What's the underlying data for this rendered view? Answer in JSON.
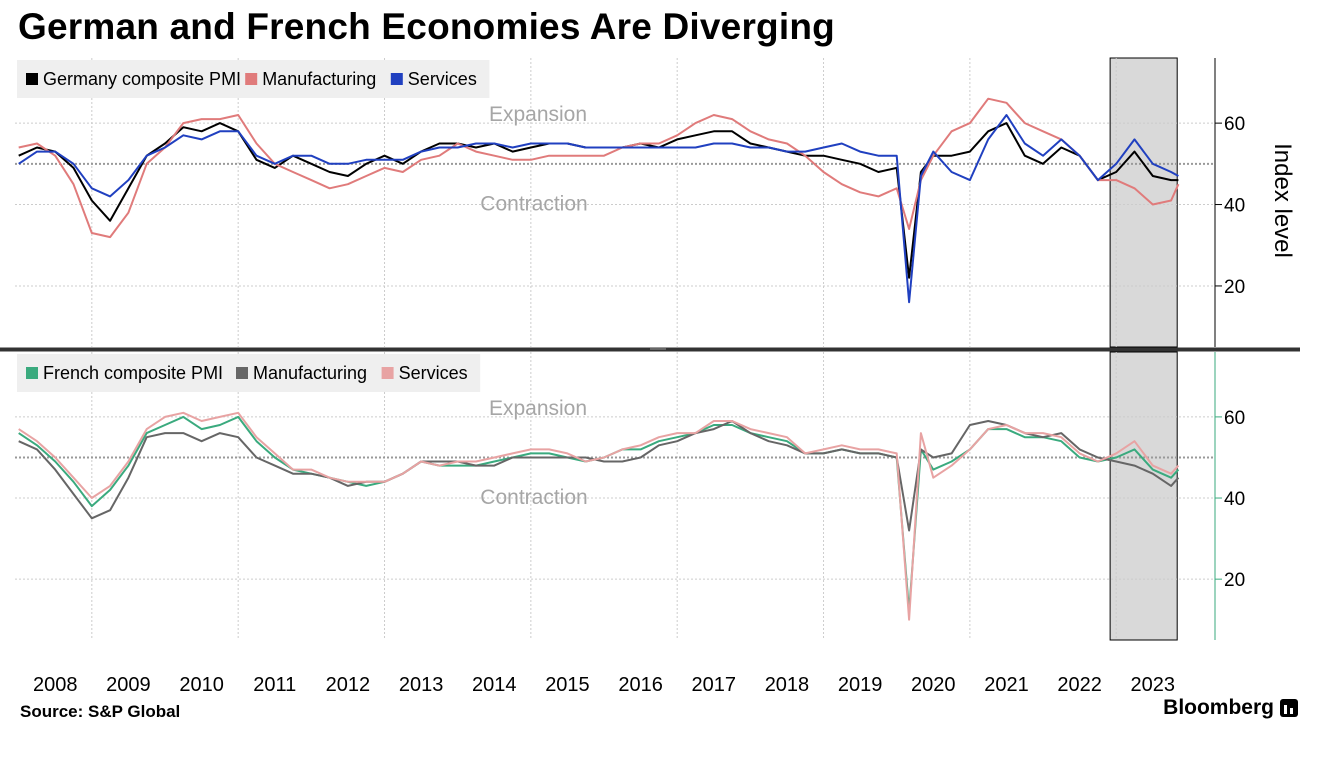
{
  "title": "German and French Economies Are Diverging",
  "source": "Source: S&P Global",
  "brand": "Bloomberg",
  "chart_data": [
    {
      "type": "line",
      "panel": "top",
      "ylabel": "Index level",
      "ylim": [
        5,
        76
      ],
      "yticks": [
        20,
        40,
        60
      ],
      "reference_line": 50,
      "annotations": [
        "Expansion",
        "Contraction"
      ],
      "shaded_period": [
        "2022-12",
        "2023-11"
      ],
      "series": [
        {
          "name": "Germany composite PMI",
          "color": "#000000",
          "x": [
            2008.0,
            2008.25,
            2008.5,
            2008.75,
            2009.0,
            2009.25,
            2009.5,
            2009.75,
            2010.0,
            2010.25,
            2010.5,
            2010.75,
            2011.0,
            2011.25,
            2011.5,
            2011.75,
            2012.0,
            2012.25,
            2012.5,
            2012.75,
            2013.0,
            2013.25,
            2013.5,
            2013.75,
            2014.0,
            2014.25,
            2014.5,
            2014.75,
            2015.0,
            2015.25,
            2015.5,
            2015.75,
            2016.0,
            2016.25,
            2016.5,
            2016.75,
            2017.0,
            2017.25,
            2017.5,
            2017.75,
            2018.0,
            2018.25,
            2018.5,
            2018.75,
            2019.0,
            2019.25,
            2019.5,
            2019.75,
            2020.0,
            2020.17,
            2020.33,
            2020.5,
            2020.75,
            2021.0,
            2021.25,
            2021.5,
            2021.75,
            2022.0,
            2022.25,
            2022.5,
            2022.75,
            2023.0,
            2023.25,
            2023.5,
            2023.75,
            2023.85
          ],
          "values": [
            52,
            54,
            53,
            49,
            41,
            36,
            44,
            52,
            55,
            59,
            58,
            60,
            58,
            51,
            49,
            52,
            50,
            48,
            47,
            50,
            52,
            50,
            53,
            55,
            55,
            54,
            55,
            53,
            54,
            55,
            55,
            54,
            54,
            54,
            55,
            54,
            56,
            57,
            58,
            58,
            55,
            54,
            53,
            52,
            52,
            51,
            50,
            48,
            49,
            22,
            48,
            52,
            52,
            53,
            58,
            60,
            52,
            50,
            54,
            52,
            46,
            48,
            53,
            47,
            46,
            46
          ]
        },
        {
          "name": "Manufacturing",
          "color": "#e07b7b",
          "x": [
            2008.0,
            2008.25,
            2008.5,
            2008.75,
            2009.0,
            2009.25,
            2009.5,
            2009.75,
            2010.0,
            2010.25,
            2010.5,
            2010.75,
            2011.0,
            2011.25,
            2011.5,
            2011.75,
            2012.0,
            2012.25,
            2012.5,
            2012.75,
            2013.0,
            2013.25,
            2013.5,
            2013.75,
            2014.0,
            2014.25,
            2014.5,
            2014.75,
            2015.0,
            2015.25,
            2015.5,
            2015.75,
            2016.0,
            2016.25,
            2016.5,
            2016.75,
            2017.0,
            2017.25,
            2017.5,
            2017.75,
            2018.0,
            2018.25,
            2018.5,
            2018.75,
            2019.0,
            2019.25,
            2019.5,
            2019.75,
            2020.0,
            2020.17,
            2020.33,
            2020.5,
            2020.75,
            2021.0,
            2021.25,
            2021.5,
            2021.75,
            2022.0,
            2022.25,
            2022.5,
            2022.75,
            2023.0,
            2023.25,
            2023.5,
            2023.75,
            2023.85
          ],
          "values": [
            54,
            55,
            52,
            45,
            33,
            32,
            38,
            50,
            54,
            60,
            61,
            61,
            62,
            55,
            50,
            48,
            46,
            44,
            45,
            47,
            49,
            48,
            51,
            52,
            55,
            53,
            52,
            51,
            51,
            52,
            52,
            52,
            52,
            54,
            55,
            55,
            57,
            60,
            62,
            61,
            58,
            56,
            55,
            52,
            48,
            45,
            43,
            42,
            44,
            34,
            46,
            52,
            58,
            60,
            66,
            65,
            60,
            58,
            56,
            52,
            46,
            46,
            44,
            40,
            41,
            45
          ]
        },
        {
          "name": "Services",
          "color": "#2040c0",
          "x": [
            2008.0,
            2008.25,
            2008.5,
            2008.75,
            2009.0,
            2009.25,
            2009.5,
            2009.75,
            2010.0,
            2010.25,
            2010.5,
            2010.75,
            2011.0,
            2011.25,
            2011.5,
            2011.75,
            2012.0,
            2012.25,
            2012.5,
            2012.75,
            2013.0,
            2013.25,
            2013.5,
            2013.75,
            2014.0,
            2014.25,
            2014.5,
            2014.75,
            2015.0,
            2015.25,
            2015.5,
            2015.75,
            2016.0,
            2016.25,
            2016.5,
            2016.75,
            2017.0,
            2017.25,
            2017.5,
            2017.75,
            2018.0,
            2018.25,
            2018.5,
            2018.75,
            2019.0,
            2019.25,
            2019.5,
            2019.75,
            2020.0,
            2020.17,
            2020.33,
            2020.5,
            2020.75,
            2021.0,
            2021.25,
            2021.5,
            2021.75,
            2022.0,
            2022.25,
            2022.5,
            2022.75,
            2023.0,
            2023.25,
            2023.5,
            2023.75,
            2023.85
          ],
          "values": [
            50,
            53,
            53,
            50,
            44,
            42,
            46,
            52,
            54,
            57,
            56,
            58,
            58,
            52,
            50,
            52,
            52,
            50,
            50,
            51,
            51,
            51,
            53,
            54,
            54,
            55,
            55,
            54,
            55,
            55,
            55,
            54,
            54,
            54,
            54,
            54,
            54,
            54,
            55,
            55,
            54,
            54,
            53,
            53,
            54,
            55,
            53,
            52,
            52,
            16,
            47,
            53,
            48,
            46,
            56,
            62,
            55,
            52,
            56,
            52,
            46,
            50,
            56,
            50,
            48,
            47
          ]
        }
      ]
    },
    {
      "type": "line",
      "panel": "bottom",
      "ylim": [
        5,
        76
      ],
      "yticks": [
        20,
        40,
        60
      ],
      "reference_line": 50,
      "annotations": [
        "Expansion",
        "Contraction"
      ],
      "shaded_period": [
        "2022-12",
        "2023-11"
      ],
      "x_ticks": [
        "2008",
        "2009",
        "2010",
        "2011",
        "2012",
        "2013",
        "2014",
        "2015",
        "2016",
        "2017",
        "2018",
        "2019",
        "2020",
        "2021",
        "2022",
        "2023"
      ],
      "series": [
        {
          "name": "French composite PMI",
          "color": "#3aaa7e",
          "x": [
            2008.0,
            2008.25,
            2008.5,
            2008.75,
            2009.0,
            2009.25,
            2009.5,
            2009.75,
            2010.0,
            2010.25,
            2010.5,
            2010.75,
            2011.0,
            2011.25,
            2011.5,
            2011.75,
            2012.0,
            2012.25,
            2012.5,
            2012.75,
            2013.0,
            2013.25,
            2013.5,
            2013.75,
            2014.0,
            2014.25,
            2014.5,
            2014.75,
            2015.0,
            2015.25,
            2015.5,
            2015.75,
            2016.0,
            2016.25,
            2016.5,
            2016.75,
            2017.0,
            2017.25,
            2017.5,
            2017.75,
            2018.0,
            2018.25,
            2018.5,
            2018.75,
            2019.0,
            2019.25,
            2019.5,
            2019.75,
            2020.0,
            2020.17,
            2020.33,
            2020.5,
            2020.75,
            2021.0,
            2021.25,
            2021.5,
            2021.75,
            2022.0,
            2022.25,
            2022.5,
            2022.75,
            2023.0,
            2023.25,
            2023.5,
            2023.75,
            2023.85
          ],
          "values": [
            56,
            53,
            49,
            44,
            38,
            42,
            48,
            56,
            58,
            60,
            57,
            58,
            60,
            54,
            50,
            47,
            46,
            45,
            44,
            43,
            44,
            46,
            49,
            48,
            48,
            48,
            49,
            50,
            51,
            51,
            50,
            49,
            50,
            52,
            52,
            54,
            55,
            56,
            58,
            58,
            56,
            55,
            54,
            51,
            51,
            52,
            51,
            51,
            50,
            12,
            52,
            47,
            49,
            52,
            57,
            57,
            55,
            55,
            54,
            50,
            49,
            50,
            52,
            47,
            45,
            47
          ]
        },
        {
          "name": "Manufacturing",
          "color": "#666666",
          "x": [
            2008.0,
            2008.25,
            2008.5,
            2008.75,
            2009.0,
            2009.25,
            2009.5,
            2009.75,
            2010.0,
            2010.25,
            2010.5,
            2010.75,
            2011.0,
            2011.25,
            2011.5,
            2011.75,
            2012.0,
            2012.25,
            2012.5,
            2012.75,
            2013.0,
            2013.25,
            2013.5,
            2013.75,
            2014.0,
            2014.25,
            2014.5,
            2014.75,
            2015.0,
            2015.25,
            2015.5,
            2015.75,
            2016.0,
            2016.25,
            2016.5,
            2016.75,
            2017.0,
            2017.25,
            2017.5,
            2017.75,
            2018.0,
            2018.25,
            2018.5,
            2018.75,
            2019.0,
            2019.25,
            2019.5,
            2019.75,
            2020.0,
            2020.17,
            2020.33,
            2020.5,
            2020.75,
            2021.0,
            2021.25,
            2021.5,
            2021.75,
            2022.0,
            2022.25,
            2022.5,
            2022.75,
            2023.0,
            2023.25,
            2023.5,
            2023.75,
            2023.85
          ],
          "values": [
            54,
            52,
            47,
            41,
            35,
            37,
            45,
            55,
            56,
            56,
            54,
            56,
            55,
            50,
            48,
            46,
            46,
            45,
            43,
            44,
            44,
            46,
            49,
            49,
            49,
            48,
            48,
            50,
            50,
            50,
            50,
            50,
            49,
            49,
            50,
            53,
            54,
            56,
            57,
            59,
            56,
            54,
            53,
            51,
            51,
            52,
            51,
            51,
            50,
            32,
            52,
            50,
            51,
            58,
            59,
            58,
            56,
            55,
            56,
            52,
            50,
            49,
            48,
            46,
            43,
            45
          ]
        },
        {
          "name": "Services",
          "color": "#e8a3a3",
          "x": [
            2008.0,
            2008.25,
            2008.5,
            2008.75,
            2009.0,
            2009.25,
            2009.5,
            2009.75,
            2010.0,
            2010.25,
            2010.5,
            2010.75,
            2011.0,
            2011.25,
            2011.5,
            2011.75,
            2012.0,
            2012.25,
            2012.5,
            2012.75,
            2013.0,
            2013.25,
            2013.5,
            2013.75,
            2014.0,
            2014.25,
            2014.5,
            2014.75,
            2015.0,
            2015.25,
            2015.5,
            2015.75,
            2016.0,
            2016.25,
            2016.5,
            2016.75,
            2017.0,
            2017.25,
            2017.5,
            2017.75,
            2018.0,
            2018.25,
            2018.5,
            2018.75,
            2019.0,
            2019.25,
            2019.5,
            2019.75,
            2020.0,
            2020.17,
            2020.33,
            2020.5,
            2020.75,
            2021.0,
            2021.25,
            2021.5,
            2021.75,
            2022.0,
            2022.25,
            2022.5,
            2022.75,
            2023.0,
            2023.25,
            2023.5,
            2023.75,
            2023.85
          ],
          "values": [
            57,
            54,
            50,
            45,
            40,
            43,
            49,
            57,
            60,
            61,
            59,
            60,
            61,
            55,
            51,
            47,
            47,
            45,
            44,
            44,
            44,
            46,
            49,
            48,
            49,
            49,
            50,
            51,
            52,
            52,
            51,
            49,
            50,
            52,
            53,
            55,
            56,
            56,
            59,
            59,
            57,
            56,
            55,
            51,
            52,
            53,
            52,
            52,
            51,
            10,
            56,
            45,
            48,
            52,
            57,
            58,
            56,
            56,
            55,
            51,
            49,
            51,
            54,
            48,
            46,
            48
          ]
        }
      ]
    }
  ]
}
